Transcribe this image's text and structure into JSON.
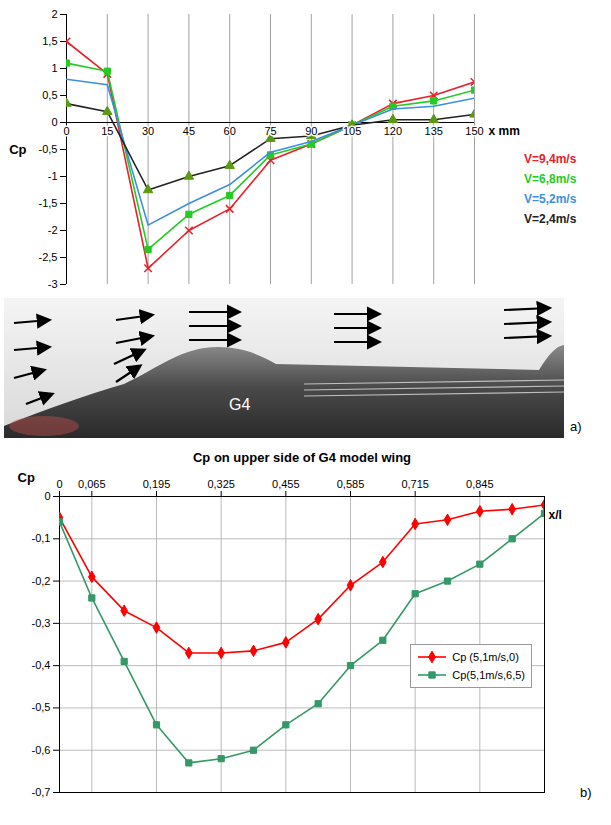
{
  "chart_data": [
    {
      "type": "line",
      "panel": "a)",
      "xlabel": "x mm",
      "ylabel": "Cp",
      "x": [
        0,
        15,
        30,
        45,
        60,
        75,
        90,
        105,
        120,
        135,
        150
      ],
      "xlim": [
        0,
        150
      ],
      "xticks": [
        0,
        15,
        30,
        45,
        60,
        75,
        90,
        105,
        120,
        135,
        150
      ],
      "ylim": [
        -3,
        2
      ],
      "yticks": [
        2,
        {
          "value": 1.5,
          "label": "1,5"
        },
        1,
        {
          "value": 0.5,
          "label": "0,5"
        },
        0,
        {
          "value": -0.5,
          "label": "-0,5"
        },
        -1,
        {
          "value": -1.5,
          "label": "-1,5"
        },
        -2,
        {
          "value": -2.5,
          "label": "-2,5"
        },
        -3
      ],
      "grid": "x",
      "legend": "right",
      "series": [
        {
          "name": "V=9,4m/s",
          "color": "#e8202a",
          "marker": "times",
          "values": [
            1.5,
            0.9,
            -2.7,
            -2.0,
            -1.6,
            -0.7,
            -0.4,
            -0.05,
            0.35,
            0.5,
            0.75
          ]
        },
        {
          "name": "V=6,8m/s",
          "color": "#22cc22",
          "marker": "square",
          "values": [
            1.1,
            0.95,
            -2.35,
            -1.7,
            -1.35,
            -0.6,
            -0.4,
            -0.05,
            0.3,
            0.4,
            0.6
          ]
        },
        {
          "name": "V=5,2m/s",
          "color": "#3a8fe0",
          "values": [
            0.8,
            0.7,
            -1.9,
            -1.5,
            -1.15,
            -0.55,
            -0.35,
            -0.05,
            0.25,
            0.3,
            0.45
          ]
        },
        {
          "name": "V=2,4m/s",
          "color": "#222222",
          "marker": "triangle",
          "values": [
            0.35,
            0.2,
            -1.25,
            -1.0,
            -0.8,
            -0.3,
            -0.25,
            -0.05,
            0.05,
            0.05,
            0.15
          ]
        }
      ]
    },
    {
      "type": "line",
      "panel": "b)",
      "title": "Cp on upper side of G4 model wing",
      "xlabel": "x/l",
      "ylabel": "Cp",
      "x": [
        0,
        0.065,
        0.13,
        0.195,
        0.26,
        0.325,
        0.39,
        0.455,
        0.52,
        0.585,
        0.65,
        0.715,
        0.78,
        0.845,
        0.91,
        0.975
      ],
      "xlim": [
        0,
        0.975
      ],
      "xticks": [
        0,
        {
          "value": 0.065,
          "label": "0,065"
        },
        {
          "value": 0.195,
          "label": "0,195"
        },
        {
          "value": 0.325,
          "label": "0,325"
        },
        {
          "value": 0.455,
          "label": "0,455"
        },
        {
          "value": 0.585,
          "label": "0,585"
        },
        {
          "value": 0.715,
          "label": "0,715"
        },
        {
          "value": 0.845,
          "label": "0,845"
        }
      ],
      "ylim": [
        -0.7,
        0
      ],
      "yticks": [
        0,
        {
          "value": -0.1,
          "label": "-0,1"
        },
        {
          "value": -0.2,
          "label": "-0,2"
        },
        {
          "value": -0.3,
          "label": "-0,3"
        },
        {
          "value": -0.4,
          "label": "-0,4"
        },
        {
          "value": -0.5,
          "label": "-0,5"
        },
        {
          "value": -0.6,
          "label": "-0,6"
        },
        {
          "value": -0.7,
          "label": "-0,7"
        }
      ],
      "grid": true,
      "legend": "right",
      "series": [
        {
          "name": "Cp (5,1m/s,0)",
          "color": "#ff0000",
          "marker": "diamond",
          "values": [
            -0.05,
            -0.19,
            -0.27,
            -0.31,
            -0.37,
            -0.37,
            -0.365,
            -0.345,
            -0.29,
            -0.21,
            -0.155,
            -0.065,
            -0.055,
            -0.035,
            -0.03,
            -0.02
          ]
        },
        {
          "name": "Cp(5,1m/s,6,5)",
          "color": "#339966",
          "marker": "square",
          "values": [
            -0.06,
            -0.24,
            -0.39,
            -0.54,
            -0.63,
            -0.62,
            -0.6,
            -0.54,
            -0.49,
            -0.4,
            -0.34,
            -0.23,
            -0.2,
            -0.16,
            -0.1,
            -0.04
          ]
        }
      ]
    }
  ],
  "image": {
    "label": "G4"
  }
}
